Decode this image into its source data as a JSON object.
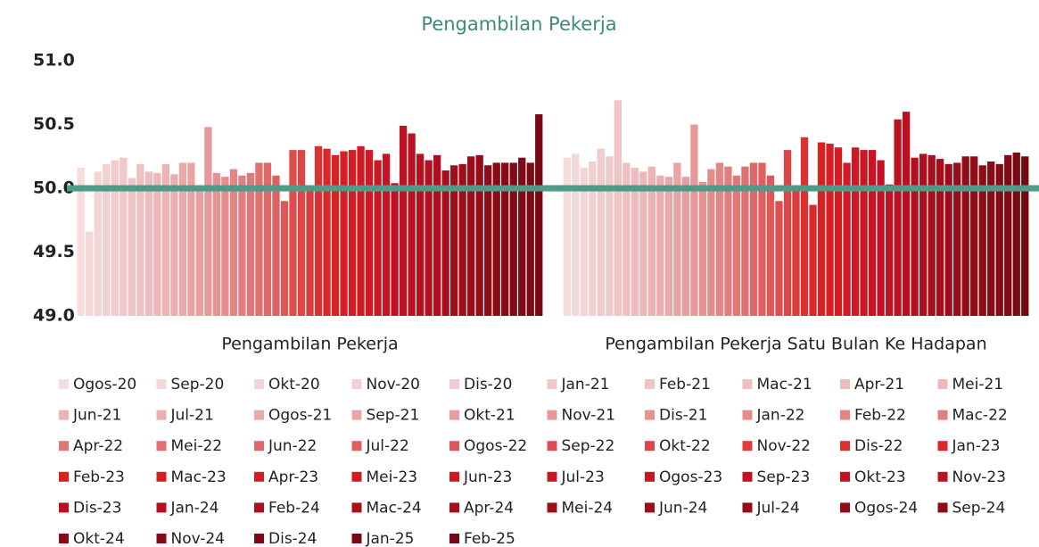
{
  "chart_data": {
    "type": "bar",
    "title": "Pengambilan Pekerja",
    "categories": [
      "Pengambilan Pekerja",
      "Pengambilan Pekerja Satu Bulan Ke Hadapan"
    ],
    "ylim": [
      49,
      51
    ],
    "yticks": [
      {
        "value": 49,
        "label": "49.0"
      },
      {
        "value": 49.5,
        "label": "49.5"
      },
      {
        "value": 50,
        "label": "50.0"
      },
      {
        "value": 50.5,
        "label": "50.5"
      },
      {
        "value": 51,
        "label": "51.0"
      }
    ],
    "grid": false,
    "reference_line": {
      "value": 50,
      "color": "#4f9a88"
    },
    "legend": "bottom",
    "series": [
      {
        "name": "Ogos-20",
        "color": "#f6dcdc",
        "values": [
          50.16,
          50.24
        ]
      },
      {
        "name": "Sep-20",
        "color": "#f5d8d8",
        "values": [
          49.66,
          50.27
        ]
      },
      {
        "name": "Okt-20",
        "color": "#f4d4d4",
        "values": [
          50.13,
          50.16
        ]
      },
      {
        "name": "Nov-20",
        "color": "#f3d0d0",
        "values": [
          50.19,
          50.21
        ]
      },
      {
        "name": "Dis-20",
        "color": "#f2cccc",
        "values": [
          50.22,
          50.31
        ]
      },
      {
        "name": "Jan-21",
        "color": "#f1c8c8",
        "values": [
          50.24,
          50.25
        ]
      },
      {
        "name": "Feb-21",
        "color": "#f0c4c4",
        "values": [
          50.08,
          50.69
        ]
      },
      {
        "name": "Mac-21",
        "color": "#efc0c0",
        "values": [
          50.19,
          50.2
        ]
      },
      {
        "name": "Apr-21",
        "color": "#eebcbc",
        "values": [
          50.13,
          50.16
        ]
      },
      {
        "name": "Mei-21",
        "color": "#edb8b8",
        "values": [
          50.12,
          50.13
        ]
      },
      {
        "name": "Jun-21",
        "color": "#ecb3b3",
        "values": [
          50.19,
          50.17
        ]
      },
      {
        "name": "Jul-21",
        "color": "#ebaeae",
        "values": [
          50.11,
          50.1
        ]
      },
      {
        "name": "Ogos-21",
        "color": "#eaa9a9",
        "values": [
          50.2,
          50.09
        ]
      },
      {
        "name": "Sep-21",
        "color": "#e9a4a4",
        "values": [
          50.2,
          50.2
        ]
      },
      {
        "name": "Okt-21",
        "color": "#e89e9e",
        "values": [
          50.0,
          50.09
        ]
      },
      {
        "name": "Nov-21",
        "color": "#e79898",
        "values": [
          50.48,
          50.5
        ]
      },
      {
        "name": "Dis-21",
        "color": "#e69292",
        "values": [
          50.12,
          50.05
        ]
      },
      {
        "name": "Jan-22",
        "color": "#e58c8c",
        "values": [
          50.09,
          50.15
        ]
      },
      {
        "name": "Feb-22",
        "color": "#e48585",
        "values": [
          50.15,
          50.2
        ]
      },
      {
        "name": "Mac-22",
        "color": "#e37e7e",
        "values": [
          50.1,
          50.17
        ]
      },
      {
        "name": "Apr-22",
        "color": "#e27777",
        "values": [
          50.12,
          50.1
        ]
      },
      {
        "name": "Mei-22",
        "color": "#e17070",
        "values": [
          50.2,
          50.17
        ]
      },
      {
        "name": "Jun-22",
        "color": "#e06868",
        "values": [
          50.2,
          50.2
        ]
      },
      {
        "name": "Jul-22",
        "color": "#df6060",
        "values": [
          50.1,
          50.2
        ]
      },
      {
        "name": "Ogos-22",
        "color": "#de5858",
        "values": [
          49.9,
          50.1
        ]
      },
      {
        "name": "Sep-22",
        "color": "#dd4f4f",
        "values": [
          50.3,
          49.9
        ]
      },
      {
        "name": "Okt-22",
        "color": "#dc4646",
        "values": [
          50.3,
          50.3
        ]
      },
      {
        "name": "Nov-22",
        "color": "#db3c3c",
        "values": [
          50.0,
          50.0
        ]
      },
      {
        "name": "Dis-22",
        "color": "#da3232",
        "values": [
          50.33,
          50.4
        ]
      },
      {
        "name": "Jan-23",
        "color": "#d92828",
        "values": [
          50.31,
          49.87
        ]
      },
      {
        "name": "Feb-23",
        "color": "#d82222",
        "values": [
          50.26,
          50.36
        ]
      },
      {
        "name": "Mac-23",
        "color": "#d61e24",
        "values": [
          50.29,
          50.35
        ]
      },
      {
        "name": "Apr-23",
        "color": "#d41c24",
        "values": [
          50.3,
          50.32
        ]
      },
      {
        "name": "Mei-23",
        "color": "#d11a24",
        "values": [
          50.33,
          50.2
        ]
      },
      {
        "name": "Jun-23",
        "color": "#ce1824",
        "values": [
          50.3,
          50.32
        ]
      },
      {
        "name": "Jul-23",
        "color": "#cb1624",
        "values": [
          50.22,
          50.3
        ]
      },
      {
        "name": "Ogos-23",
        "color": "#c71424",
        "values": [
          50.27,
          50.3
        ]
      },
      {
        "name": "Sep-23",
        "color": "#c31323",
        "values": [
          50.04,
          50.22
        ]
      },
      {
        "name": "Okt-23",
        "color": "#bf1222",
        "values": [
          50.49,
          50.03
        ]
      },
      {
        "name": "Nov-23",
        "color": "#bb1121",
        "values": [
          50.43,
          50.54
        ]
      },
      {
        "name": "Dis-23",
        "color": "#b71020",
        "values": [
          50.27,
          50.6
        ]
      },
      {
        "name": "Jan-24",
        "color": "#b3101f",
        "values": [
          50.22,
          50.24
        ]
      },
      {
        "name": "Feb-24",
        "color": "#ae0f1e",
        "values": [
          50.26,
          50.27
        ]
      },
      {
        "name": "Mac-24",
        "color": "#a90e1d",
        "values": [
          50.14,
          50.26
        ]
      },
      {
        "name": "Apr-24",
        "color": "#a40e1c",
        "values": [
          50.18,
          50.23
        ]
      },
      {
        "name": "Mei-24",
        "color": "#9f0d1b",
        "values": [
          50.19,
          50.19
        ]
      },
      {
        "name": "Jun-24",
        "color": "#9a0d1a",
        "values": [
          50.25,
          50.2
        ]
      },
      {
        "name": "Jul-24",
        "color": "#950c19",
        "values": [
          50.26,
          50.25
        ]
      },
      {
        "name": "Ogos-24",
        "color": "#900c18",
        "values": [
          50.18,
          50.25
        ]
      },
      {
        "name": "Sep-24",
        "color": "#8c0b17",
        "values": [
          50.2,
          50.18
        ]
      },
      {
        "name": "Okt-24",
        "color": "#880b16",
        "values": [
          50.2,
          50.21
        ]
      },
      {
        "name": "Nov-24",
        "color": "#840a15",
        "values": [
          50.2,
          50.19
        ]
      },
      {
        "name": "Dis-24",
        "color": "#800a14",
        "values": [
          50.24,
          50.26
        ]
      },
      {
        "name": "Jan-25",
        "color": "#7c0913",
        "values": [
          50.2,
          50.28
        ]
      },
      {
        "name": "Feb-25",
        "color": "#780912",
        "values": [
          50.58,
          50.25
        ]
      }
    ]
  }
}
